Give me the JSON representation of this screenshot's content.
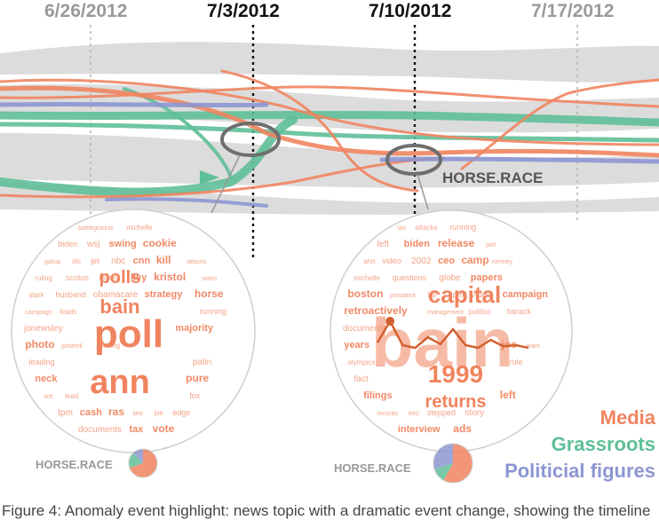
{
  "dates": [
    {
      "label": "6/26/2012",
      "color": "#9a9a9a"
    },
    {
      "label": "7/3/2012",
      "color": "#111111"
    },
    {
      "label": "7/10/2012",
      "color": "#111111"
    },
    {
      "label": "7/17/2012",
      "color": "#9a9a9a"
    }
  ],
  "topic_label": "HORSE.RACE",
  "legend": [
    {
      "label": "Media",
      "color": "#f0845f"
    },
    {
      "label": "Grassroots",
      "color": "#5fbf98"
    },
    {
      "label": "Politicial figures",
      "color": "#8c96d2"
    }
  ],
  "colors": {
    "media": "#f0845f",
    "grassroots": "#5fbf98",
    "political": "#8c96d2",
    "band": "#dcdcdc",
    "highlight_ring": "#6e6e6e"
  },
  "left_cloud": {
    "words": [
      "poll",
      "ann",
      "polls",
      "bain",
      "battleground",
      "michelle",
      "biden",
      "wsj",
      "swing",
      "cookie",
      "gallup",
      "ski",
      "jet",
      "nbc",
      "cnn",
      "kill",
      "attacks",
      "ruling",
      "scotus",
      "rides",
      "key",
      "kristol",
      "video",
      "stark",
      "husband",
      "obamacare",
      "strategy",
      "horse",
      "campaign",
      "leads",
      "running",
      "jonewsley",
      "majority",
      "photo",
      "jsthehill",
      "polling",
      "leading",
      "palin",
      "neck",
      "pure",
      "left",
      "lead",
      "fox",
      "tpm",
      "cash",
      "ras",
      "lied",
      "joe",
      "edge",
      "documents",
      "tax",
      "vote",
      "mens",
      "ready",
      "caught",
      "obama",
      "narrowly",
      "ariz",
      "rassmussen",
      "shedding",
      "republicans",
      "americans",
      "reforms",
      "pulling",
      "oppose",
      "coverage",
      "trailing",
      "vs",
      "deal",
      "surveys",
      "sides",
      "election",
      "among"
    ],
    "chart": {
      "media": 0.7,
      "grassroots": 0.18,
      "political": 0.12
    }
  },
  "right_cloud": {
    "words": [
      "bain",
      "capital",
      "1999",
      "returns",
      "tax",
      "attacks",
      "running",
      "left",
      "biden",
      "release",
      "poll",
      "ann",
      "video",
      "2002",
      "ceo",
      "camp",
      "romney",
      "michelle",
      "questions",
      "globe",
      "papers",
      "boston",
      "president",
      "kill",
      "tpm",
      "video",
      "campaign",
      "retroactively",
      "management",
      "politico",
      "barack",
      "documents",
      "years",
      "joe",
      "team",
      "olympics",
      "rule",
      "fact",
      "filings",
      "left",
      "records",
      "sec",
      "stepped",
      "story",
      "interview",
      "ads",
      "claims",
      "deny",
      "book",
      "romney",
      "jsthehill",
      "record",
      "gov",
      "mediaite",
      "response",
      "gopstarred",
      "press"
    ],
    "chart": {
      "media": 0.58,
      "grassroots": 0.12,
      "political": 0.3
    },
    "sparkline": [
      0.15,
      0.55,
      0.1,
      0.05,
      0.25,
      0.12,
      0.4,
      0.1,
      0.05,
      0.2,
      0.08,
      0.1,
      0.05
    ]
  },
  "caption": "Figure 4: Anomaly event highlight: news topic with a dramatic event change, showing the timeline"
}
